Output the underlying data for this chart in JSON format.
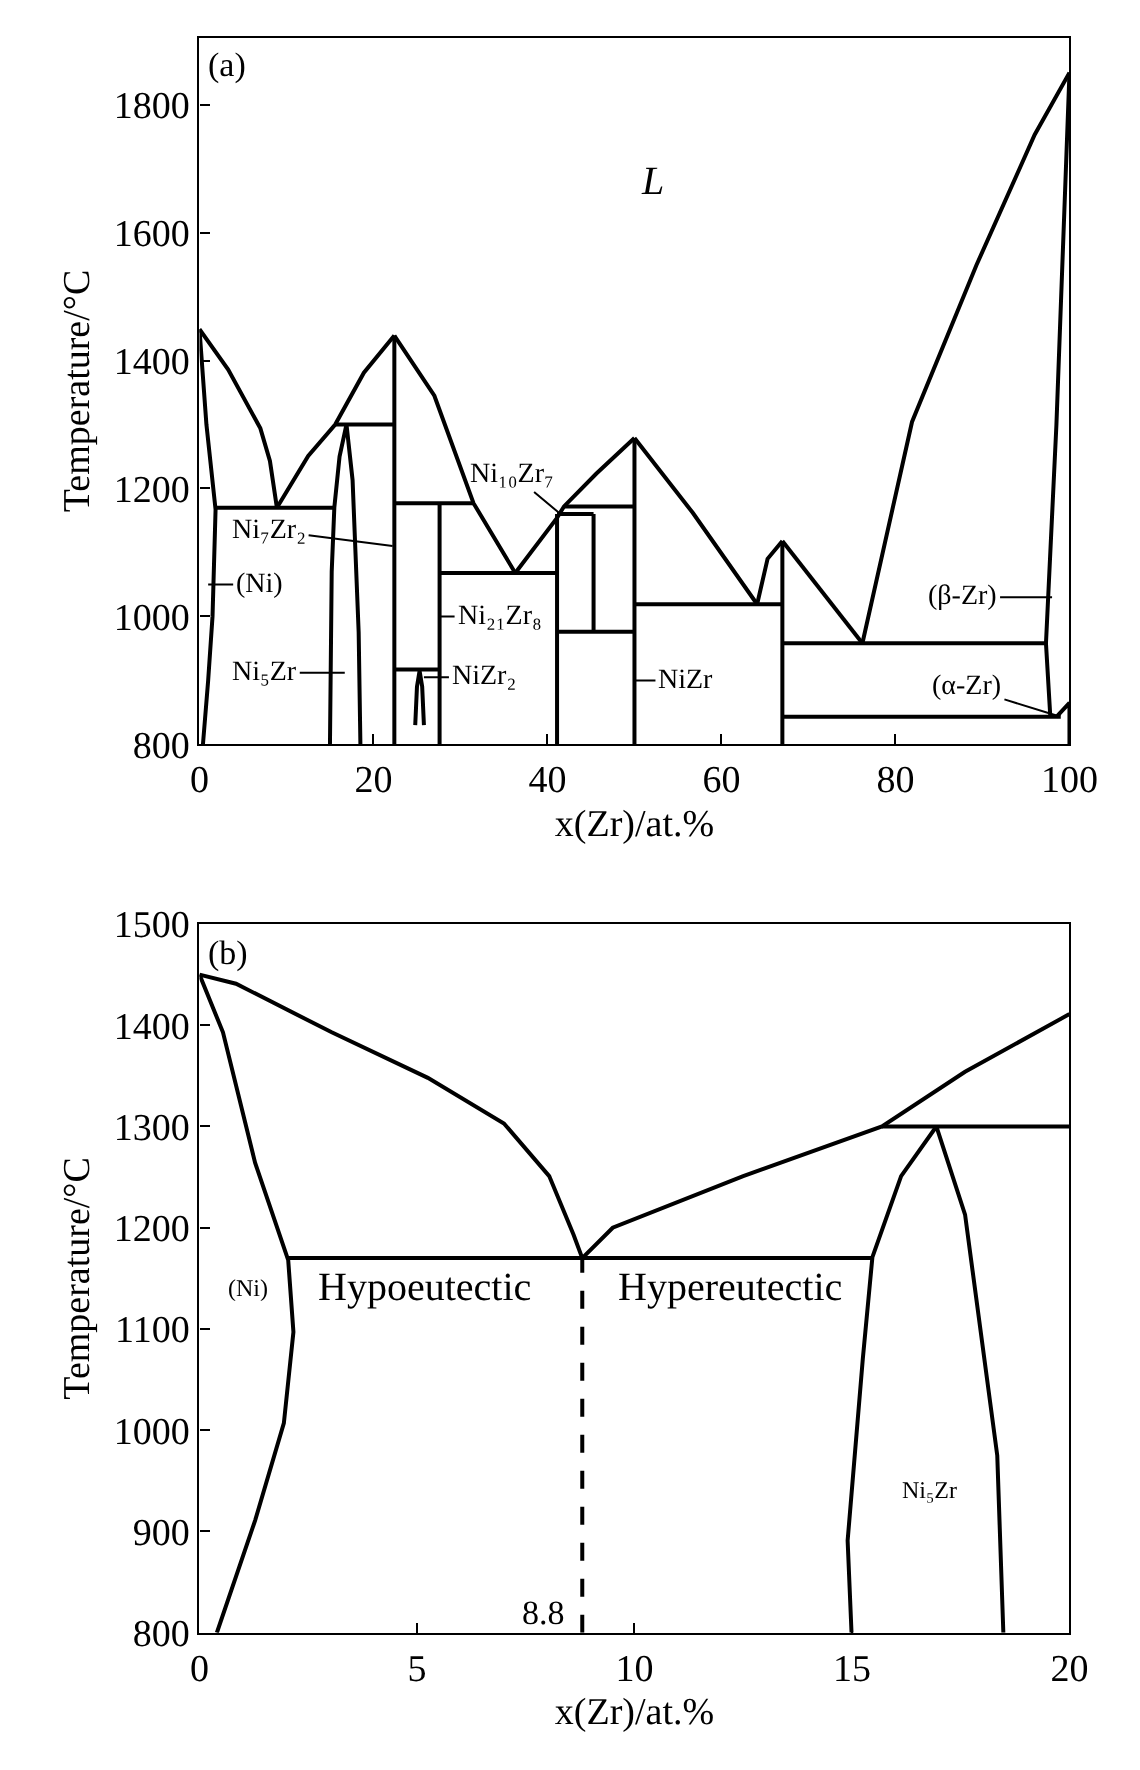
{
  "chart_data": [
    {
      "type": "line",
      "xlabel": "x(Zr)/at.%",
      "ylabel": "Temperature/°C",
      "xlim": [
        0,
        100
      ],
      "ylim": [
        800,
        1905
      ],
      "xticks": [
        0,
        20,
        40,
        60,
        80,
        100
      ],
      "yticks": [
        800,
        1000,
        1200,
        1400,
        1600,
        1800
      ],
      "grid": false,
      "marker": "none",
      "line_style": "solid",
      "annotations": [
        "(a)",
        "L",
        "Ni₁₀Zr₇",
        "Ni₇Zr₂",
        "(Ni)",
        "Ni₂₁Zr₈",
        "Ni₅Zr",
        "NiZr₂",
        "NiZr",
        "(β-Zr)",
        {
          "text": "(α-Zr)",
          "x": 98.5,
          "y": 845
        }
      ],
      "series": [
        {
          "color": "#000000",
          "x": [
            0,
            3.3,
            7,
            8.1,
            8.9
          ],
          "values": [
            1449,
            1386,
            1294,
            1243,
            1170
          ]
        },
        {
          "color": "#000000",
          "x": [
            0,
            0.8,
            1.85,
            1.5,
            1.0,
            0.4
          ],
          "values": [
            1449,
            1300,
            1167,
            1000,
            900,
            800
          ]
        },
        {
          "color": "#000000",
          "x": [
            1.85,
            15.5
          ],
          "values": [
            1170,
            1170
          ]
        },
        {
          "color": "#000000",
          "x": [
            8.9,
            12.5,
            15.6,
            18.9,
            22.4
          ],
          "values": [
            1170,
            1251,
            1300,
            1381,
            1439
          ]
        },
        {
          "color": "#000000",
          "x": [
            15.6,
            22.4
          ],
          "values": [
            1300,
            1300
          ]
        },
        {
          "color": "#000000",
          "x": [
            15,
            15.2,
            15.5,
            16.1,
            16.9,
            17.6,
            18.3,
            18.5
          ],
          "values": [
            800,
            1070,
            1170,
            1250,
            1300,
            1213,
            975,
            800
          ]
        },
        {
          "color": "#000000",
          "x": [
            22.4,
            22.4
          ],
          "values": [
            800,
            1439
          ]
        },
        {
          "color": "#000000",
          "x": [
            22.4,
            27,
            31.5,
            36.3
          ],
          "values": [
            1439,
            1345,
            1177,
            1068
          ]
        },
        {
          "color": "#000000",
          "x": [
            22.4,
            31.5
          ],
          "values": [
            1177,
            1177
          ]
        },
        {
          "color": "#000000",
          "x": [
            27.6,
            27.6
          ],
          "values": [
            800,
            1177
          ]
        },
        {
          "color": "#000000",
          "x": [
            22.4,
            27.6
          ],
          "values": [
            917,
            917
          ]
        },
        {
          "color": "#000000",
          "x": [
            24.8,
            25.0,
            25.3,
            25.6,
            25.8
          ],
          "values": [
            830,
            890,
            915,
            890,
            830
          ]
        },
        {
          "color": "#000000",
          "x": [
            27.6,
            41.1
          ],
          "values": [
            1068,
            1068
          ]
        },
        {
          "color": "#000000",
          "x": [
            41.1,
            41.1
          ],
          "values": [
            800,
            1160
          ]
        },
        {
          "color": "#000000",
          "x": [
            36.3,
            41.1,
            41.9,
            45.6,
            50
          ],
          "values": [
            1068,
            1154,
            1172,
            1223,
            1279
          ]
        },
        {
          "color": "#000000",
          "x": [
            41.1,
            45.3
          ],
          "values": [
            1160,
            1160
          ]
        },
        {
          "color": "#000000",
          "x": [
            41.9,
            50
          ],
          "values": [
            1172,
            1172
          ]
        },
        {
          "color": "#000000",
          "x": [
            45.3,
            45.3
          ],
          "values": [
            976,
            1160
          ]
        },
        {
          "color": "#000000",
          "x": [
            41.1,
            50
          ],
          "values": [
            976,
            976
          ]
        },
        {
          "color": "#000000",
          "x": [
            50,
            50
          ],
          "values": [
            800,
            1279
          ]
        },
        {
          "color": "#000000",
          "x": [
            50,
            56.7,
            64.1
          ],
          "values": [
            1279,
            1162,
            1019
          ]
        },
        {
          "color": "#000000",
          "x": [
            50,
            67
          ],
          "values": [
            1019,
            1019
          ]
        },
        {
          "color": "#000000",
          "x": [
            64.1,
            65.3,
            67
          ],
          "values": [
            1019,
            1090,
            1118
          ]
        },
        {
          "color": "#000000",
          "x": [
            67,
            67
          ],
          "values": [
            800,
            1118
          ]
        },
        {
          "color": "#000000",
          "x": [
            67,
            76.2
          ],
          "values": [
            1118,
            958
          ]
        },
        {
          "color": "#000000",
          "x": [
            67,
            97.3
          ],
          "values": [
            958,
            958
          ]
        },
        {
          "color": "#000000",
          "x": [
            76.2,
            81.9,
            89.3,
            96,
            100
          ],
          "values": [
            958,
            1304,
            1549,
            1753,
            1850
          ]
        },
        {
          "color": "#000000",
          "x": [
            100,
            98.5,
            97.3,
            97.8
          ],
          "values": [
            1850,
            1300,
            958,
            843
          ]
        },
        {
          "color": "#000000",
          "x": [
            67,
            99
          ],
          "values": [
            843,
            843
          ]
        },
        {
          "color": "#000000",
          "x": [
            98.5,
            100,
            100
          ],
          "values": [
            843,
            865,
            800
          ]
        }
      ]
    },
    {
      "type": "line",
      "xlabel": "x(Zr)/at.%",
      "ylabel": "Temperature/°C",
      "xlim": [
        0,
        20
      ],
      "ylim": [
        800,
        1500
      ],
      "xticks": [
        0,
        5,
        10,
        15,
        20
      ],
      "yticks": [
        800,
        900,
        1000,
        1100,
        1200,
        1300,
        1400,
        1500
      ],
      "grid": false,
      "marker": "none",
      "line_style": "solid",
      "annotations": [
        "(b)",
        "(Ni)",
        "Hypoeutectic",
        "Hypereutectic",
        "Ni₅Zr",
        "8.8"
      ],
      "series": [
        {
          "color": "#000000",
          "x": [
            0,
            0.84,
            3.04,
            5.25,
            7.0,
            8.04,
            8.6,
            8.8
          ],
          "values": [
            1450,
            1441,
            1393,
            1348,
            1303,
            1251,
            1193,
            1170
          ]
        },
        {
          "color": "#000000",
          "x": [
            0,
            0.54,
            1.28,
            2.04,
            2.16,
            1.94,
            1.28,
            0.4
          ],
          "values": [
            1450,
            1393,
            1264,
            1168,
            1097,
            1007,
            911,
            800
          ]
        },
        {
          "color": "#000000",
          "x": [
            2.04,
            15.47
          ],
          "values": [
            1170,
            1170
          ]
        },
        {
          "color": "#000000",
          "x": [
            8.8,
            9.5,
            12.5,
            15.69,
            17.6,
            20
          ],
          "values": [
            1170,
            1200,
            1251,
            1300,
            1354,
            1411
          ]
        },
        {
          "color": "#000000",
          "x": [
            15.69,
            20
          ],
          "values": [
            1300,
            1300
          ]
        },
        {
          "color": "#000000",
          "x": [
            14.99,
            14.9,
            15.25,
            15.47,
            16.13,
            16.94,
            17.6,
            18.34,
            18.48
          ],
          "values": [
            800,
            891,
            1071,
            1171,
            1251,
            1300,
            1213,
            975,
            800
          ]
        },
        {
          "color": "#000000",
          "x": [
            8.8,
            8.8
          ],
          "values": [
            800,
            1170
          ],
          "line_style": "dashed"
        }
      ]
    }
  ]
}
